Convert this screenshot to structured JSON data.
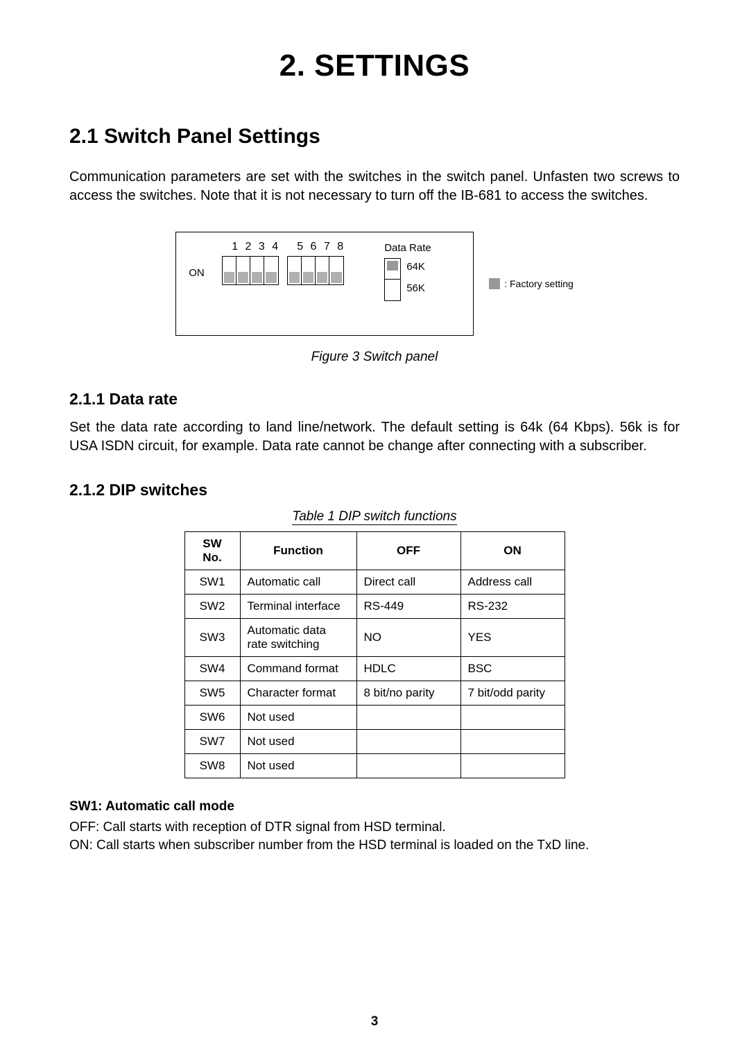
{
  "chapter_title": "2. SETTINGS",
  "section_title": "2.1 Switch Panel Settings",
  "intro_paragraph": "Communication parameters are set with the switches in the switch panel. Unfasten two screws to access the switches. Note that it is not necessary to turn off the IB-681 to access the switches.",
  "figure": {
    "dip_numbers_a": "1 2 3 4",
    "dip_numbers_b": "5 6 7 8",
    "on_label": "ON",
    "data_rate_title": "Data Rate",
    "rate_64": "64K",
    "rate_56": "56K",
    "legend_text": ": Factory setting",
    "caption": "Figure 3 Switch panel",
    "dip_positions": [
      "down",
      "down",
      "down",
      "down",
      "down",
      "down",
      "down",
      "down"
    ],
    "rate_selected": "64K",
    "knob_color": "#b0b0b0",
    "border_color": "#000000"
  },
  "subsec_211": {
    "heading": "2.1.1 Data rate",
    "text": "Set the data rate according to land line/network. The default setting is 64k (64 Kbps). 56k is for USA ISDN circuit, for example. Data rate cannot be change after connecting with a subscriber."
  },
  "subsec_212": {
    "heading": "2.1.2 DIP switches",
    "table_caption": "Table 1 DIP switch functions",
    "columns": [
      "SW No.",
      "Function",
      "OFF",
      "ON"
    ],
    "rows": [
      [
        "SW1",
        "Automatic call",
        "Direct call",
        "Address call"
      ],
      [
        "SW2",
        "Terminal interface",
        "RS-449",
        "RS-232"
      ],
      [
        "SW3",
        "Automatic data rate switching",
        "NO",
        "YES"
      ],
      [
        "SW4",
        "Command format",
        "HDLC",
        "BSC"
      ],
      [
        "SW5",
        "Character format",
        "8 bit/no parity",
        "7 bit/odd parity"
      ],
      [
        "SW6",
        "Not used",
        "",
        ""
      ],
      [
        "SW7",
        "Not used",
        "",
        ""
      ],
      [
        "SW8",
        "Not used",
        "",
        ""
      ]
    ]
  },
  "sw1_detail": {
    "heading": "SW1: Automatic call mode",
    "off_line": "OFF: Call starts with reception of DTR signal from HSD terminal.",
    "on_line": "ON: Call starts when subscriber number from the HSD terminal is loaded on the TxD line."
  },
  "page_number": "3"
}
